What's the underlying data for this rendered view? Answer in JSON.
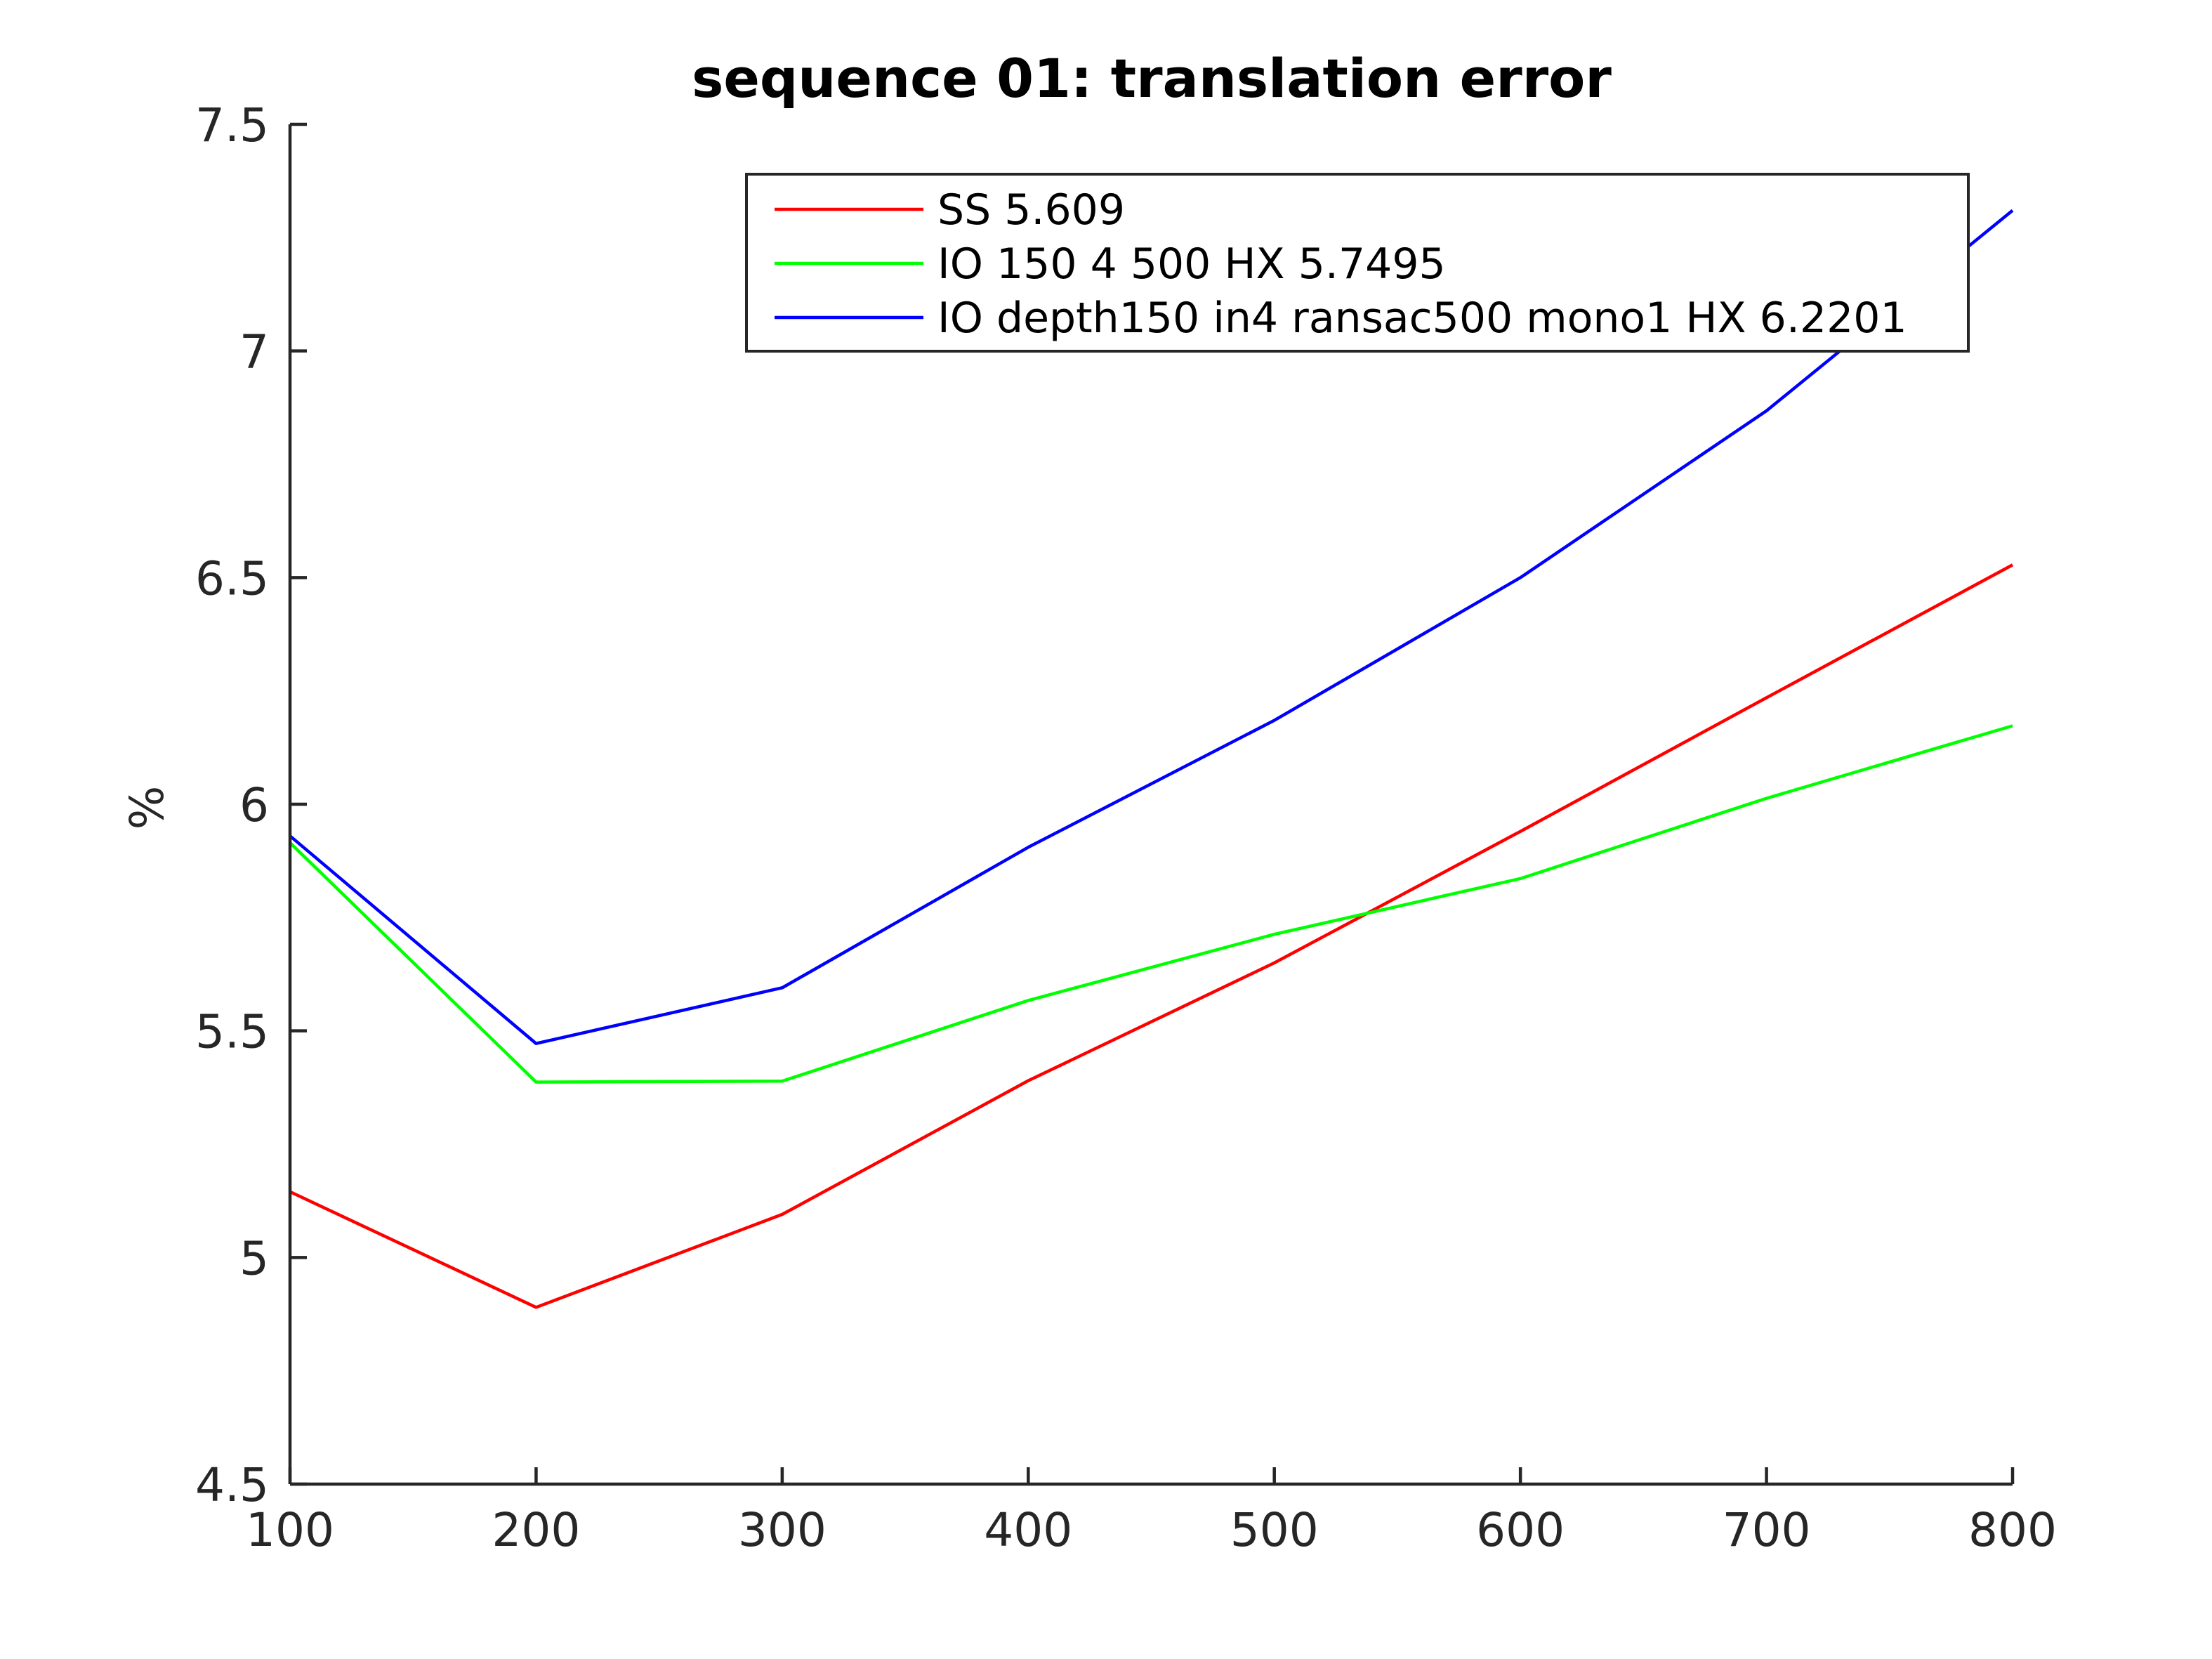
{
  "chart_data": {
    "type": "line",
    "title": "sequence 01: translation error",
    "xlabel": "",
    "ylabel": "%",
    "x": [
      100,
      200,
      300,
      400,
      500,
      600,
      700,
      800
    ],
    "xlim": [
      100,
      800
    ],
    "ylim": [
      4.5,
      7.5
    ],
    "xticks": [
      "100",
      "200",
      "300",
      "400",
      "500",
      "600",
      "700",
      "800"
    ],
    "yticks": [
      "4.5",
      "5",
      "5.5",
      "6",
      "6.5",
      "7",
      "7.5"
    ],
    "grid": false,
    "legend_position": "top-right",
    "series": [
      {
        "name": "SS 5.609",
        "color": "#ff0000",
        "values": [
          5.145,
          4.89,
          5.095,
          5.39,
          5.65,
          5.94,
          6.235,
          6.528
        ]
      },
      {
        "name": "IO 150 4 500 HX 5.7495",
        "color": "#00ff00",
        "values": [
          5.915,
          5.387,
          5.389,
          5.567,
          5.713,
          5.836,
          6.013,
          6.173
        ]
      },
      {
        "name": "IO depth150 in4 ransac500 mono1 HX 6.2201",
        "color": "#0000ff",
        "values": [
          5.93,
          5.472,
          5.595,
          5.905,
          6.185,
          6.5,
          6.868,
          7.31
        ]
      }
    ]
  }
}
